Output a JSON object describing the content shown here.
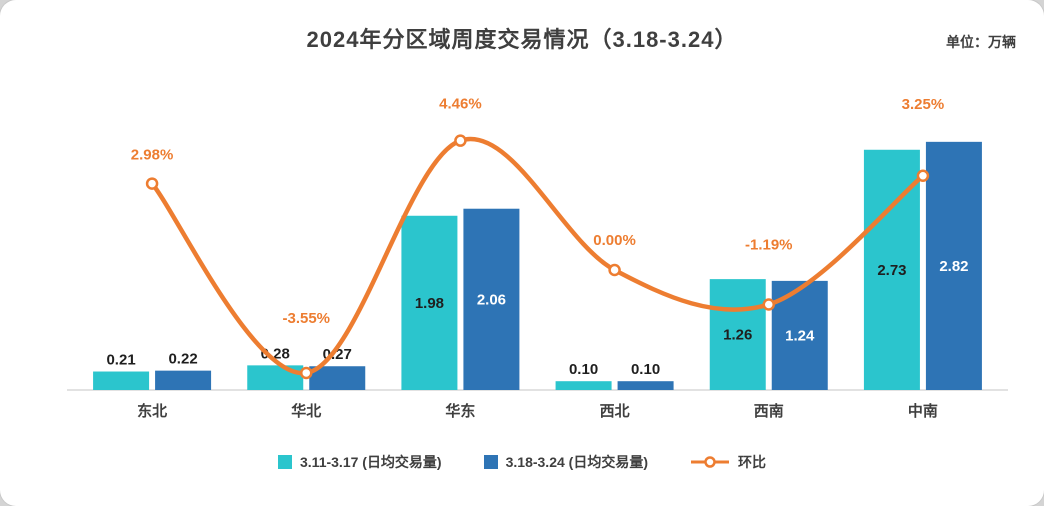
{
  "header": {
    "title": "2024年分区域周度交易情况（3.18-3.24）",
    "unit_label": "单位：万辆"
  },
  "chart_data": {
    "type": "bar",
    "subtype": "grouped-bars-with-smooth-line",
    "title": "2024年分区域周度交易情况（3.18-3.24）",
    "unit": "万辆",
    "categories": [
      "东北",
      "华北",
      "华东",
      "西北",
      "西南",
      "中南"
    ],
    "series": [
      {
        "name": "3.11-3.17 (日均交易量)",
        "type": "bar",
        "color": "#2BC5CD",
        "values": [
          0.21,
          0.28,
          1.98,
          0.1,
          1.26,
          2.73
        ]
      },
      {
        "name": "3.18-3.24 (日均交易量)",
        "type": "bar",
        "color": "#2E74B5",
        "values": [
          0.22,
          0.27,
          2.06,
          0.1,
          1.24,
          2.82
        ]
      },
      {
        "name": "环比",
        "type": "line",
        "color": "#ED7D31",
        "marker": "circle-white-fill",
        "values_pct": [
          2.98,
          -3.55,
          4.46,
          0.0,
          -1.19,
          3.25
        ],
        "labels": [
          "2.98%",
          "-3.55%",
          "4.46%",
          "0.00%",
          "-1.19%",
          "3.25%"
        ]
      }
    ],
    "value_axis": {
      "min": 0,
      "max": 3.0,
      "visible": false
    },
    "pct_axis": {
      "min": -4.5,
      "max": 5.5,
      "visible": false
    },
    "grid": false,
    "legend_position": "bottom",
    "axis_line_color": "#d9d9d9",
    "layout_hints": {
      "pct_label_dy": [
        -24,
        -50,
        -32,
        -25,
        -55,
        -67
      ]
    }
  },
  "legend": {
    "items": [
      {
        "label": "3.11-3.17 (日均交易量)"
      },
      {
        "label": "3.18-3.24 (日均交易量)"
      },
      {
        "label": "环比"
      }
    ]
  }
}
